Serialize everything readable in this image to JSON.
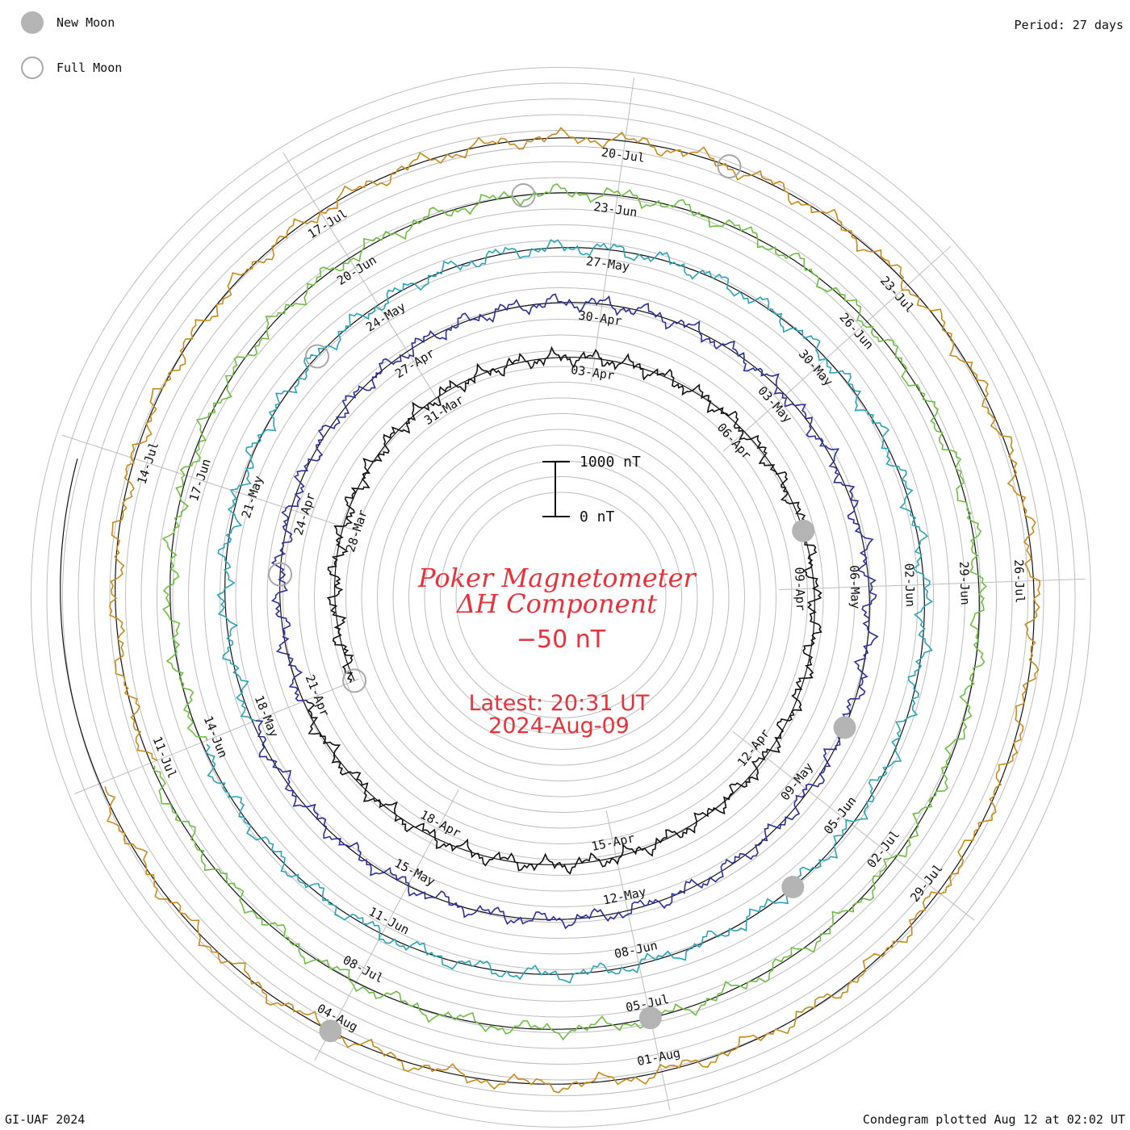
{
  "legend": [
    {
      "label": "New Moon",
      "type": "new"
    },
    {
      "label": "Full Moon",
      "type": "full"
    }
  ],
  "period_label": "Period: 27 days",
  "credit": "GI-UAF 2024",
  "plotted": "Condegram plotted Aug 12 at 02:02 UT",
  "title_line1": "Poker Magnetometer",
  "title_line2": "ΔH Component",
  "offset_label": "−50 nT",
  "latest_line1": "Latest: 20:31 UT",
  "latest_line2": "2024-Aug-09",
  "scale_top": "1000 nT",
  "scale_bottom": "0 nT",
  "colors": {
    "grid": "#bdbdbd",
    "text": "#111111",
    "title": "#e8313a",
    "moon_fill": "#b4b4b4",
    "moon_stroke": "#a8a8a8"
  },
  "chart_data": {
    "type": "line",
    "title": "Poker Magnetometer ΔH Component",
    "ylabel": "nT",
    "y_scale_reference": [
      0,
      1000
    ],
    "period_days": 27,
    "start_date": "2024-03-25",
    "end_date": "2024-08-09",
    "cycles": [
      {
        "index": 0,
        "color": "#111111",
        "date_labels": [
          "28-Mar",
          "31-Mar",
          "03-Apr",
          "06-Apr",
          "09-Apr",
          "12-Apr",
          "15-Apr",
          "18-Apr",
          "21-Apr"
        ]
      },
      {
        "index": 1,
        "color": "#2b2f9c",
        "date_labels": [
          "24-Apr",
          "27-Apr",
          "30-Apr",
          "03-May",
          "06-May",
          "09-May",
          "12-May",
          "15-May",
          "18-May"
        ]
      },
      {
        "index": 2,
        "color": "#2ba3b8",
        "date_labels": [
          "21-May",
          "24-May",
          "27-May",
          "30-May",
          "02-Jun",
          "05-Jun",
          "08-Jun",
          "11-Jun",
          "14-Jun"
        ]
      },
      {
        "index": 3,
        "color": "#6fbe44",
        "date_labels": [
          "17-Jun",
          "20-Jun",
          "23-Jun",
          "26-Jun",
          "29-Jun",
          "02-Jul",
          "05-Jul",
          "08-Jul",
          "11-Jul"
        ]
      },
      {
        "index": 4,
        "color": "#c98a1c",
        "date_labels": [
          "14-Jul",
          "17-Jul",
          "20-Jul",
          "23-Jul",
          "26-Jul",
          "29-Jul",
          "01-Aug",
          "04-Aug"
        ]
      }
    ],
    "new_moons": [
      "2024-04-08",
      "2024-05-08",
      "2024-06-06",
      "2024-07-05",
      "2024-08-04"
    ],
    "full_moons": [
      "2024-03-25",
      "2024-04-23",
      "2024-05-23",
      "2024-06-22",
      "2024-07-21"
    ]
  }
}
